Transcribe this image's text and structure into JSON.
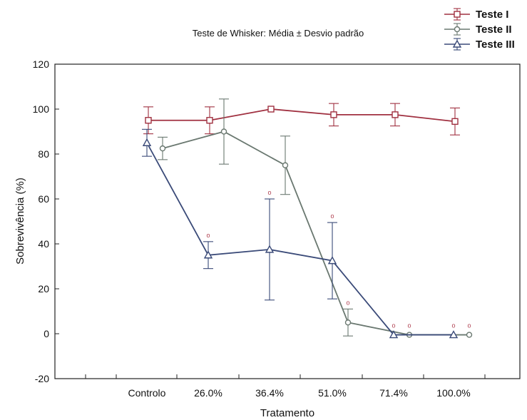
{
  "chart_data": {
    "type": "line",
    "title": "Teste de Whisker: Média ± Desvio padrão",
    "xlabel": "Tratamento",
    "ylabel": "Sobrevivência (%)",
    "categories": [
      "Controlo",
      "26.0%",
      "36.4%",
      "51.0%",
      "71.4%",
      "100.0%"
    ],
    "ylim": [
      -20,
      120
    ],
    "yticks": [
      "-20",
      "0",
      "20",
      "40",
      "60",
      "80",
      "100",
      "120"
    ],
    "grid": false,
    "legend_position": "top-right",
    "series": [
      {
        "name": "Teste I",
        "color": "#a03040",
        "marker": "square",
        "values": [
          95,
          95,
          100,
          97.5,
          97.5,
          94.5
        ],
        "errors": [
          6,
          6,
          0,
          5,
          5,
          6
        ],
        "labels": [
          "",
          "",
          "",
          "",
          "",
          ""
        ]
      },
      {
        "name": "Teste II",
        "color": "#6a7870",
        "marker": "circle",
        "values": [
          82.5,
          90,
          75,
          5,
          -0.5,
          -0.5
        ],
        "errors": [
          5,
          14.5,
          13,
          6,
          0,
          0
        ],
        "labels": [
          "",
          "",
          "",
          "o",
          "o",
          "o"
        ]
      },
      {
        "name": "Teste III",
        "color": "#3a4a78",
        "marker": "triangle",
        "values": [
          85,
          35,
          37.5,
          32.5,
          -0.5,
          -0.5
        ],
        "errors": [
          6,
          6,
          22.5,
          17,
          0,
          0
        ],
        "labels": [
          "",
          "o",
          "o",
          "o",
          "o",
          "o"
        ]
      }
    ]
  }
}
